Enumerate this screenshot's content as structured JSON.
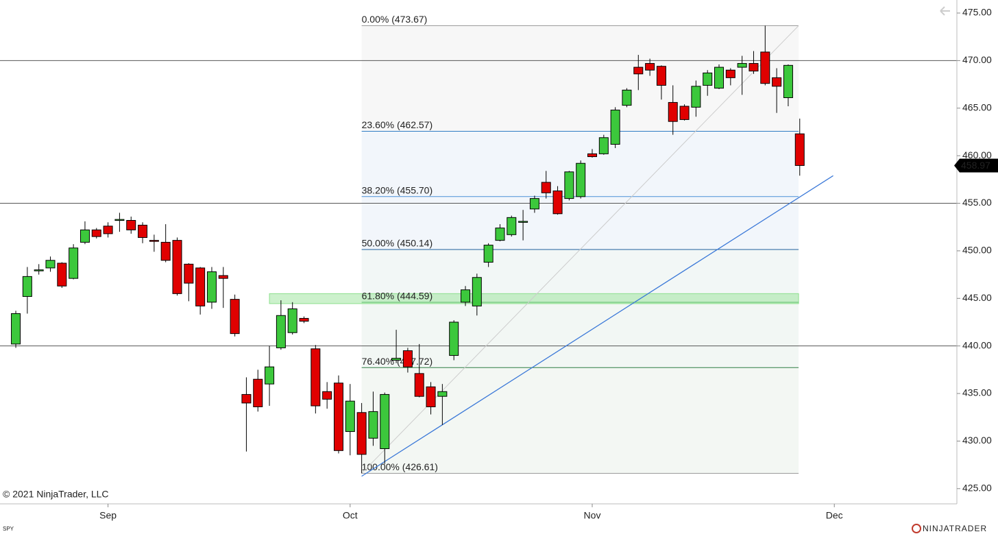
{
  "chart_data": {
    "type": "candlestick",
    "x": [
      0,
      1,
      2,
      3,
      4,
      5,
      6,
      7,
      8,
      9,
      10,
      11,
      12,
      13,
      14,
      15,
      16,
      17,
      18,
      19,
      20,
      21,
      22,
      23,
      24,
      25,
      26,
      27,
      28,
      29,
      30,
      31,
      32,
      33,
      34,
      35,
      36,
      37,
      38,
      39,
      40,
      41,
      42,
      43,
      44,
      45,
      46,
      47,
      48,
      49,
      50,
      51,
      52,
      53,
      54,
      55,
      56,
      57,
      58,
      59,
      60,
      61,
      62,
      63,
      64,
      65,
      66,
      67,
      68
    ],
    "open": [
      440.2,
      445.2,
      447.9,
      448.2,
      448.7,
      447.1,
      450.9,
      452.2,
      452.6,
      453.2,
      453.2,
      452.7,
      451.1,
      450.9,
      451.1,
      448.6,
      448.2,
      444.6,
      447.4,
      444.9,
      434.9,
      436.5,
      436.0,
      439.8,
      441.4,
      442.9,
      439.7,
      435.2,
      436.1,
      431.0,
      433.0,
      430.3,
      429.2,
      438.5,
      439.5,
      437.1,
      435.7,
      434.7,
      439.0,
      444.6,
      444.2,
      448.8,
      451.1,
      451.7,
      453.0,
      454.4,
      457.2,
      456.3,
      455.5,
      455.7,
      460.2,
      460.2,
      461.2,
      465.3,
      469.3,
      469.7,
      469.4,
      465.6,
      465.2,
      465.1,
      467.4,
      467.1,
      469.0,
      469.3,
      469.7,
      470.9,
      468.2,
      466.1,
      462.3
    ],
    "high": [
      443.7,
      448.3,
      448.6,
      449.4,
      448.8,
      450.7,
      453.1,
      452.4,
      453.0,
      454.0,
      453.6,
      453.0,
      451.7,
      452.8,
      451.4,
      448.7,
      448.3,
      448.3,
      448.3,
      445.4,
      436.7,
      437.5,
      440.0,
      444.8,
      444.6,
      443.1,
      440.1,
      436.2,
      436.9,
      436.0,
      434.0,
      435.2,
      435.1,
      441.7,
      439.8,
      440.2,
      436.2,
      436.0,
      442.7,
      446.3,
      447.6,
      450.8,
      452.8,
      453.7,
      454.3,
      455.8,
      458.4,
      456.8,
      458.4,
      459.5,
      460.7,
      462.2,
      465.1,
      467.1,
      470.6,
      470.2,
      469.5,
      467.4,
      465.4,
      467.9,
      469.0,
      469.6,
      469.2,
      470.5,
      471.0,
      473.67,
      469.2,
      469.6,
      463.9
    ],
    "low": [
      439.8,
      443.4,
      447.5,
      447.8,
      446.1,
      447.0,
      450.7,
      451.3,
      451.4,
      452.0,
      451.8,
      450.8,
      449.9,
      448.8,
      445.3,
      444.7,
      443.3,
      443.9,
      444.0,
      441.0,
      428.9,
      433.1,
      433.7,
      439.6,
      441.2,
      442.4,
      432.9,
      433.4,
      428.7,
      428.5,
      426.61,
      429.5,
      427.6,
      438.2,
      437.2,
      434.6,
      432.8,
      431.7,
      438.5,
      444.2,
      443.2,
      448.3,
      451.0,
      451.5,
      451.1,
      454.0,
      455.5,
      453.8,
      455.3,
      455.5,
      459.8,
      460.1,
      460.8,
      465.1,
      466.9,
      468.4,
      465.9,
      462.2,
      463.7,
      464.1,
      466.3,
      467.0,
      467.4,
      466.4,
      468.6,
      467.4,
      464.5,
      465.2,
      457.9
    ],
    "close": [
      443.4,
      447.3,
      448.0,
      449.0,
      446.3,
      450.3,
      452.2,
      451.5,
      451.8,
      453.3,
      452.2,
      451.4,
      451.0,
      449.0,
      445.5,
      446.6,
      444.2,
      447.8,
      447.1,
      441.3,
      434.0,
      433.6,
      437.8,
      443.2,
      443.9,
      442.6,
      433.7,
      434.4,
      429.0,
      434.2,
      428.6,
      433.1,
      434.9,
      438.7,
      437.8,
      434.7,
      433.6,
      435.2,
      442.5,
      445.9,
      447.2,
      450.6,
      452.4,
      453.5,
      453.1,
      455.5,
      456.1,
      453.9,
      458.3,
      459.2,
      459.9,
      461.9,
      464.8,
      466.9,
      468.6,
      469.0,
      467.4,
      463.6,
      463.8,
      467.3,
      468.7,
      469.3,
      468.2,
      469.7,
      468.9,
      467.6,
      467.3,
      469.5,
      458.97
    ],
    "up_color": "#3cc83c",
    "down_color": "#e00000",
    "xlim": [
      -1.37,
      81.63
    ],
    "xticks": [
      {
        "value": 8,
        "label": "Sep"
      },
      {
        "value": 29,
        "label": "Oct"
      },
      {
        "value": 50,
        "label": "Nov"
      },
      {
        "value": 71,
        "label": "Dec"
      }
    ],
    "ylim": [
      423.4,
      476.37
    ],
    "yticks": [
      {
        "value": 425,
        "label": "425.00"
      },
      {
        "value": 430,
        "label": "430.00"
      },
      {
        "value": 435,
        "label": "435.00"
      },
      {
        "value": 440,
        "label": "440.00"
      },
      {
        "value": 445,
        "label": "445.00"
      },
      {
        "value": 450,
        "label": "450.00"
      },
      {
        "value": 455,
        "label": "455.00"
      },
      {
        "value": 460,
        "label": "460.00"
      },
      {
        "value": 465,
        "label": "465.00"
      },
      {
        "value": 470,
        "label": "470.00"
      },
      {
        "value": 475,
        "label": "475.00"
      }
    ],
    "hlines": [
      470,
      455,
      440
    ],
    "last_price": 458.97,
    "fib": {
      "x": [
        30,
        67.9
      ],
      "levels": [
        {
          "value": 473.67,
          "label": "0.00% (473.67)",
          "color": "#9a9a9a"
        },
        {
          "value": 462.57,
          "label": "23.60% (462.57)",
          "color": "#2e7bc4"
        },
        {
          "value": 455.7,
          "label": "38.20% (455.70)",
          "color": "#4a8fd6"
        },
        {
          "value": 450.14,
          "label": "50.00% (450.14)",
          "color": "#1f5f9e"
        },
        {
          "value": 444.59,
          "label": "61.80% (444.59)",
          "color": "#5cbf6a"
        },
        {
          "value": 437.72,
          "label": "76.40% (437.72)",
          "color": "#2e7d43"
        },
        {
          "value": 426.61,
          "label": "100.00% (426.61)",
          "color": "#9a9a9a"
        }
      ]
    },
    "trendline": {
      "x": [
        30,
        70.9
      ],
      "y": [
        426.3,
        457.9
      ],
      "color": "#3a78d8"
    },
    "zone": {
      "x": [
        22.0,
        67.9
      ],
      "y": [
        444.45,
        445.5
      ],
      "color": "#8de08d"
    },
    "copyright": "© 2021 NinjaTrader, LLC",
    "watermark": "SPY",
    "brand": "NINJATRADER"
  }
}
